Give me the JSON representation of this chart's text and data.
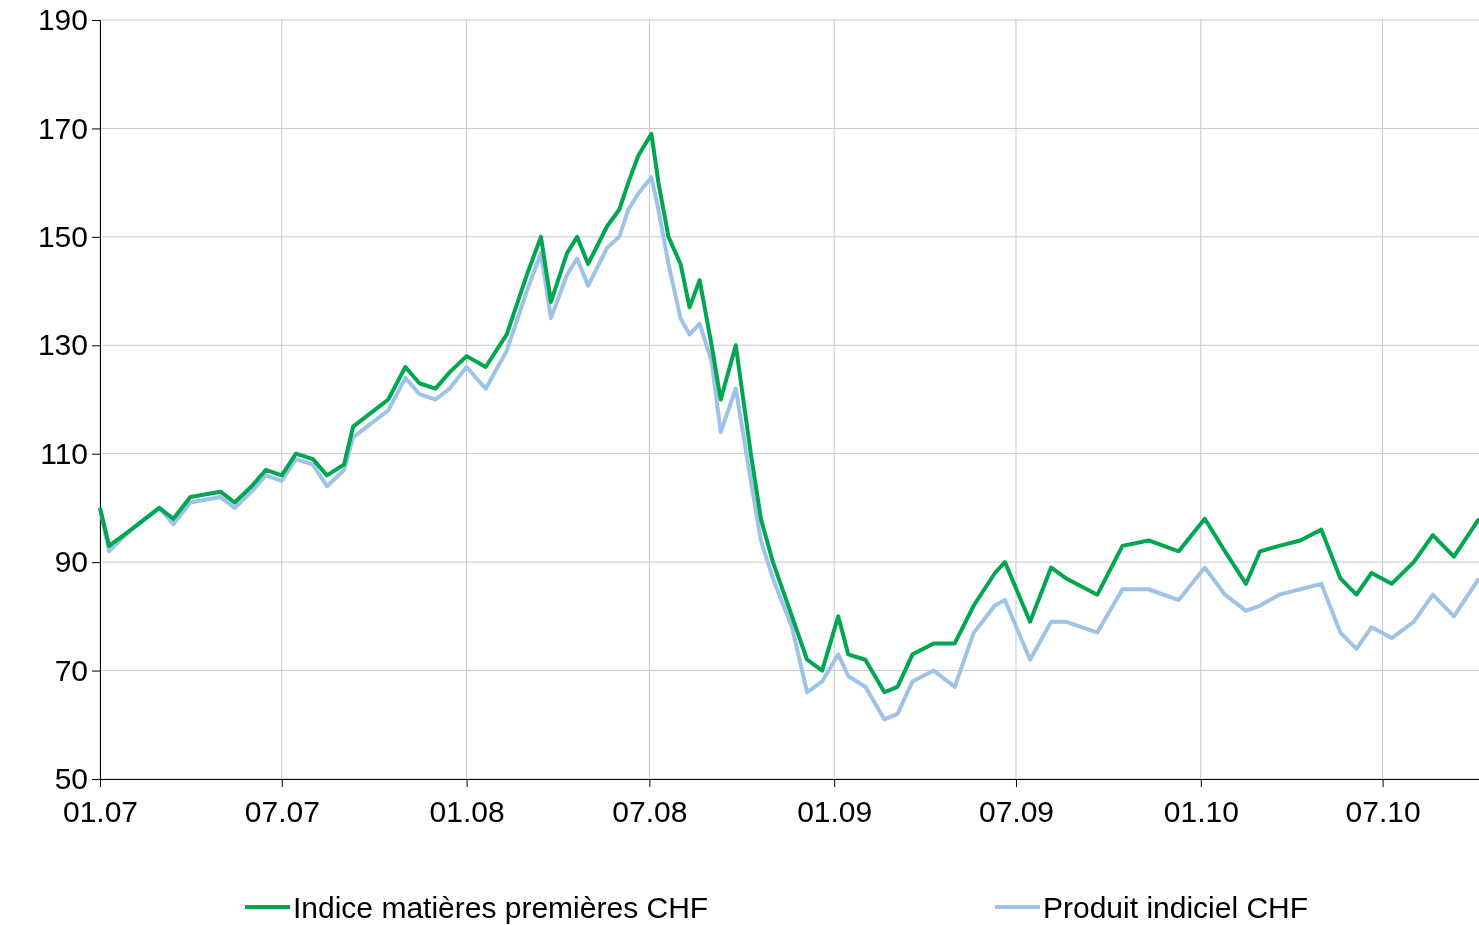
{
  "chart_data": {
    "type": "line",
    "xlim": [
      "2007-01-01",
      "2010-10-05"
    ],
    "ylim": [
      50,
      190
    ],
    "yticks": [
      50,
      70,
      90,
      110,
      130,
      150,
      170,
      190
    ],
    "xticks": [
      {
        "value": "2007-01-01",
        "label": "01.07"
      },
      {
        "value": "2007-07-01",
        "label": "07.07"
      },
      {
        "value": "2008-01-01",
        "label": "01.08"
      },
      {
        "value": "2008-07-01",
        "label": "07.08"
      },
      {
        "value": "2009-01-01",
        "label": "01.09"
      },
      {
        "value": "2009-07-01",
        "label": "07.09"
      },
      {
        "value": "2010-01-01",
        "label": "01.10"
      },
      {
        "value": "2010-07-01",
        "label": "07.10"
      }
    ],
    "grid": true,
    "legend": "bottom",
    "line_style": "solid",
    "marker": "none",
    "x": [
      "2007-01-01",
      "2007-01-10",
      "2007-02-01",
      "2007-03-01",
      "2007-03-15",
      "2007-04-01",
      "2007-05-01",
      "2007-05-15",
      "2007-06-01",
      "2007-06-15",
      "2007-07-01",
      "2007-07-15",
      "2007-08-01",
      "2007-08-15",
      "2007-09-01",
      "2007-09-10",
      "2007-10-01",
      "2007-10-15",
      "2007-11-01",
      "2007-11-15",
      "2007-12-01",
      "2007-12-15",
      "2008-01-01",
      "2008-01-20",
      "2008-02-10",
      "2008-03-01",
      "2008-03-15",
      "2008-03-25",
      "2008-04-10",
      "2008-04-20",
      "2008-05-01",
      "2008-05-20",
      "2008-06-01",
      "2008-06-10",
      "2008-06-20",
      "2008-07-03",
      "2008-07-10",
      "2008-07-20",
      "2008-08-01",
      "2008-08-10",
      "2008-08-20",
      "2008-09-01",
      "2008-09-10",
      "2008-09-25",
      "2008-10-10",
      "2008-10-20",
      "2008-11-01",
      "2008-11-20",
      "2008-12-05",
      "2008-12-20",
      "2009-01-05",
      "2009-01-15",
      "2009-02-01",
      "2009-02-20",
      "2009-03-05",
      "2009-03-20",
      "2009-04-10",
      "2009-05-01",
      "2009-05-20",
      "2009-06-10",
      "2009-06-20",
      "2009-07-15",
      "2009-08-05",
      "2009-08-20",
      "2009-09-20",
      "2009-10-15",
      "2009-11-10",
      "2009-12-10",
      "2010-01-05",
      "2010-01-25",
      "2010-02-15",
      "2010-03-01",
      "2010-03-20",
      "2010-04-10",
      "2010-05-01",
      "2010-05-20",
      "2010-06-05",
      "2010-06-20",
      "2010-07-10",
      "2010-08-01",
      "2010-08-20",
      "2010-09-10",
      "2010-10-05"
    ],
    "series": [
      {
        "name": "Indice matières premières CHF",
        "color": "#00a650",
        "values": [
          100,
          93,
          96,
          100,
          98,
          102,
          103,
          101,
          104,
          107,
          106,
          110,
          109,
          106,
          108,
          115,
          118,
          120,
          126,
          123,
          122,
          125,
          128,
          126,
          132,
          143,
          150,
          138,
          147,
          150,
          145,
          152,
          155,
          160,
          165,
          169,
          160,
          150,
          145,
          137,
          142,
          130,
          120,
          130,
          110,
          98,
          90,
          80,
          72,
          70,
          80,
          73,
          72,
          66,
          67,
          73,
          75,
          75,
          82,
          88,
          90,
          79,
          89,
          87,
          84,
          93,
          94,
          92,
          98,
          92,
          86,
          92,
          93,
          94,
          96,
          87,
          84,
          88,
          86,
          90,
          95,
          91,
          98
        ]
      },
      {
        "name": "Produit indiciel CHF",
        "color": "#9dc3e6",
        "values": [
          100,
          92,
          96,
          100,
          97,
          101,
          102,
          100,
          103,
          106,
          105,
          109,
          108,
          104,
          107,
          113,
          116,
          118,
          124,
          121,
          120,
          122,
          126,
          122,
          129,
          140,
          147,
          135,
          143,
          146,
          141,
          148,
          150,
          155,
          158,
          161,
          155,
          145,
          135,
          132,
          134,
          127,
          114,
          122,
          105,
          94,
          87,
          78,
          66,
          68,
          73,
          69,
          67,
          61,
          62,
          68,
          70,
          67,
          77,
          82,
          83,
          72,
          79,
          79,
          77,
          85,
          85,
          83,
          89,
          84,
          81,
          82,
          84,
          85,
          86,
          77,
          74,
          78,
          76,
          79,
          84,
          80,
          87
        ]
      }
    ]
  }
}
